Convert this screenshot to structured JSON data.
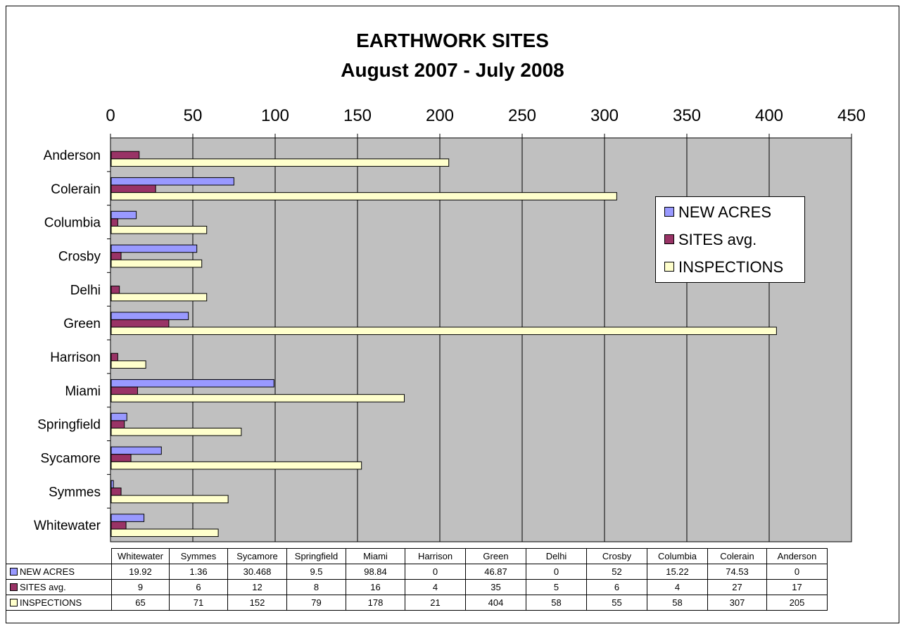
{
  "chart_data": {
    "type": "bar",
    "orientation": "horizontal",
    "title": "EARTHWORK SITES",
    "subtitle": "August 2007 - July 2008",
    "categories": [
      "Whitewater",
      "Symmes",
      "Sycamore",
      "Springfield",
      "Miami",
      "Harrison",
      "Green",
      "Delhi",
      "Crosby",
      "Columbia",
      "Colerain",
      "Anderson"
    ],
    "series": [
      {
        "name": "NEW ACRES",
        "table_label": "NEW ACRES",
        "color": "#9999ff",
        "values": [
          19.92,
          1.36,
          30.468,
          9.5,
          98.84,
          0,
          46.87,
          0,
          52,
          15.22,
          74.53,
          0
        ],
        "value_labels": [
          "19.92",
          "1.36",
          "30.468",
          "9.5",
          "98.84",
          "0",
          "46.87",
          "0",
          "52",
          "15.22",
          "74.53",
          "0"
        ]
      },
      {
        "name": "SITES avg.",
        "table_label": "SITES avg.",
        "color": "#993366",
        "values": [
          9,
          6,
          12,
          8,
          16,
          4,
          35,
          5,
          6,
          4,
          27,
          17
        ],
        "value_labels": [
          "9",
          "6",
          "12",
          "8",
          "16",
          "4",
          "35",
          "5",
          "6",
          "4",
          "27",
          "17"
        ]
      },
      {
        "name": "INSPECTIONS",
        "table_label": "INSPECTIONS",
        "color": "#ffffcc",
        "values": [
          65,
          71,
          152,
          79,
          178,
          21,
          404,
          58,
          55,
          58,
          307,
          205
        ],
        "value_labels": [
          "65",
          "71",
          "152",
          "79",
          "178",
          "21",
          "404",
          "58",
          "55",
          "58",
          "307",
          "205"
        ]
      }
    ],
    "xlim": [
      0,
      450
    ],
    "xticks": [
      "0",
      "50",
      "100",
      "150",
      "200",
      "250",
      "300",
      "350",
      "400",
      "450"
    ],
    "axis_position": "top",
    "category_order": "Anderson at top, Whitewater at bottom",
    "grid": true,
    "plot_background": "#c0c0c0",
    "legend_position": "right",
    "data_table": true
  }
}
